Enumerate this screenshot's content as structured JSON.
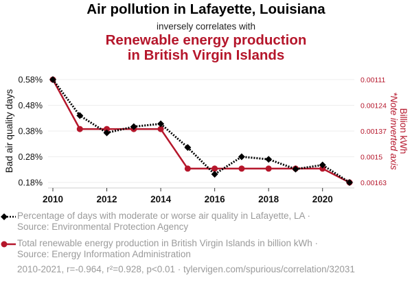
{
  "header": {
    "title": "Air pollution in Lafayette, Louisiana",
    "connector": "inversely correlates with",
    "subtitle_line1": "Renewable energy production",
    "subtitle_line2": "in British Virgin Islands"
  },
  "colors": {
    "series1": "#000000",
    "series2": "#b5162b",
    "grid": "#eeeeee",
    "legend_text": "#9a9a9a"
  },
  "legend": {
    "series1_line1": "Percentage of days with moderate or worse air quality in Lafayette, LA ·",
    "series1_line2": "Source: Environmental Protection Agency",
    "series2_line1": "Total renewable energy production in British Virgin Islands in billion kWh ·",
    "series2_line2": "Source: Energy Information Administration"
  },
  "footer": "2010-2021, r=-0.964, r²=0.928, p<0.01 · tylervigen.com/spurious/correlation/32031",
  "chart_data": {
    "type": "line",
    "title": "Air pollution in Lafayette, Louisiana inversely correlates with Renewable energy production in British Virgin Islands",
    "xlabel": "",
    "ylabel_left": "Bad air quality days",
    "ylabel_right": "Billion kWh",
    "ylabel_right_note": "*Note inverted axis",
    "x": [
      2010,
      2011,
      2012,
      2013,
      2014,
      2015,
      2016,
      2017,
      2018,
      2019,
      2020,
      2021
    ],
    "x_ticks": [
      "2010",
      "2012",
      "2014",
      "2016",
      "2018",
      "2020"
    ],
    "x_tick_values": [
      2010,
      2012,
      2014,
      2016,
      2018,
      2020
    ],
    "xlim": [
      2010,
      2021
    ],
    "y_left": {
      "ticks": [
        "0.58%",
        "0.48%",
        "0.38%",
        "0.28%",
        "0.18%"
      ],
      "tick_values": [
        0.58,
        0.48,
        0.38,
        0.28,
        0.18
      ],
      "range": [
        0.18,
        0.58
      ]
    },
    "y_right": {
      "ticks": [
        "0.00111",
        "0.00124",
        "0.00137",
        "0.0015",
        "0.00163"
      ],
      "tick_values": [
        0.00111,
        0.00124,
        0.00137,
        0.0015,
        0.00163
      ],
      "range": [
        0.00111,
        0.00163
      ],
      "inverted": true
    },
    "grid": true,
    "legend_position": "bottom",
    "series": [
      {
        "name": "Percentage of days with moderate or worse air quality in Lafayette, LA",
        "axis": "left",
        "style": "dotted",
        "marker": "diamond",
        "values": [
          0.58,
          0.44,
          0.373,
          0.397,
          0.408,
          0.316,
          0.212,
          0.28,
          0.27,
          0.232,
          0.248,
          0.18
        ]
      },
      {
        "name": "Total renewable energy production in British Virgin Islands in billion kWh",
        "axis": "right",
        "style": "solid",
        "marker": "circle",
        "values": [
          0.00111,
          0.00136,
          0.00136,
          0.00136,
          0.00136,
          0.00156,
          0.00156,
          0.00156,
          0.00156,
          0.00156,
          0.00156,
          0.00163
        ]
      }
    ]
  }
}
